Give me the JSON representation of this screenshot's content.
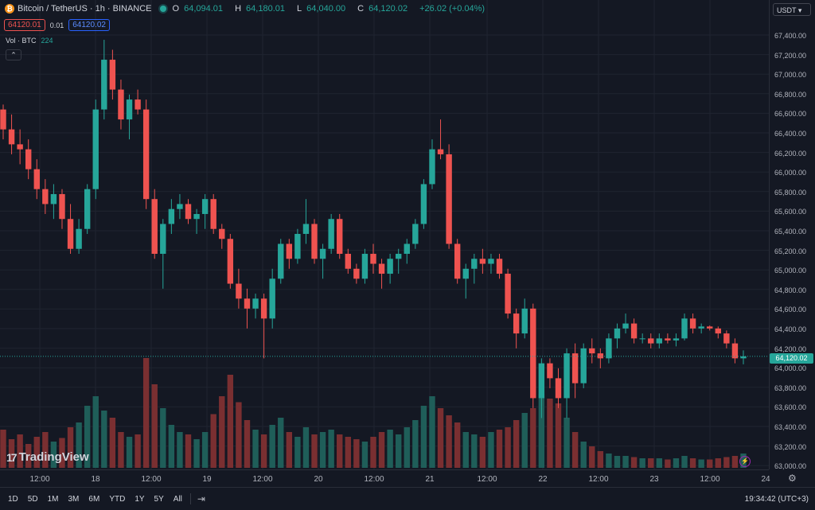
{
  "header": {
    "symbol": "Bitcoin / TetherUS · 1h · BINANCE",
    "logo_glyph": "₿",
    "ohlc": [
      {
        "k": "O",
        "v": "64,094.01"
      },
      {
        "k": "H",
        "v": "64,180.01"
      },
      {
        "k": "L",
        "v": "64,040.00"
      },
      {
        "k": "C",
        "v": "64,120.02"
      }
    ],
    "change": "+26.02 (+0.04%)"
  },
  "quote": {
    "bid": "64120.01",
    "spread": "0.01",
    "ask": "64120.02"
  },
  "volume": {
    "label": "Vol · BTC",
    "value": "224"
  },
  "collapse_glyph": "⌃",
  "watermark": {
    "mark": "17",
    "text": "TradingView"
  },
  "currency": "USDT ▾",
  "last_price": "64,120.02",
  "price_labels": [
    "67,400.00",
    "67,200.00",
    "67,000.00",
    "66,800.00",
    "66,600.00",
    "66,400.00",
    "66,200.00",
    "66,000.00",
    "65,800.00",
    "65,600.00",
    "65,400.00",
    "65,200.00",
    "65,000.00",
    "64,800.00",
    "64,600.00",
    "64,400.00",
    "64,200.00",
    "64,000.00",
    "63,800.00",
    "63,600.00",
    "63,400.00",
    "63,200.00",
    "63,000.00"
  ],
  "time_labels": [
    "12:00",
    "18",
    "12:00",
    "19",
    "12:00",
    "20",
    "12:00",
    "21",
    "12:00",
    "22",
    "12:00",
    "23",
    "12:00",
    "24"
  ],
  "timeframes": [
    "1D",
    "5D",
    "1M",
    "3M",
    "6M",
    "YTD",
    "1Y",
    "5Y",
    "All"
  ],
  "clock": "19:34:42 (UTC+3)",
  "colors": {
    "up": "#26a69a",
    "down": "#ef5350",
    "up_vol": "#1f5e59",
    "down_vol": "#7a2f31",
    "bg": "#141823"
  },
  "chart_data": {
    "type": "candlestick",
    "ylim": [
      63000,
      67500
    ],
    "ohlc_samples": [
      [
        66600,
        66650,
        66300,
        66400
      ],
      [
        66400,
        66550,
        66150,
        66250
      ],
      [
        66250,
        66400,
        66050,
        66200
      ],
      [
        66200,
        66300,
        65900,
        66000
      ],
      [
        66000,
        66100,
        65700,
        65800
      ],
      [
        65800,
        65900,
        65550,
        65650
      ],
      [
        65650,
        65850,
        65500,
        65750
      ],
      [
        65750,
        65800,
        65400,
        65500
      ],
      [
        65500,
        65650,
        65150,
        65200
      ],
      [
        65200,
        65500,
        65150,
        65400
      ],
      [
        65400,
        65850,
        65350,
        65800
      ],
      [
        65800,
        66700,
        65700,
        66600
      ],
      [
        66600,
        67300,
        66500,
        67100
      ],
      [
        67100,
        67200,
        66700,
        66800
      ],
      [
        66800,
        66900,
        66400,
        66500
      ],
      [
        66500,
        66750,
        66300,
        66700
      ],
      [
        66700,
        66800,
        66550,
        66600
      ],
      [
        66600,
        66700,
        65600,
        65700
      ],
      [
        65700,
        65800,
        65100,
        65150
      ],
      [
        65150,
        65500,
        64800,
        65450
      ],
      [
        65450,
        65700,
        65350,
        65600
      ],
      [
        65600,
        65750,
        65500,
        65650
      ],
      [
        65650,
        65700,
        65450,
        65500
      ],
      [
        65500,
        65600,
        65350,
        65550
      ],
      [
        65550,
        65750,
        65400,
        65700
      ],
      [
        65700,
        65750,
        65350,
        65400
      ],
      [
        65400,
        65450,
        65200,
        65300
      ],
      [
        65300,
        65350,
        64800,
        64850
      ],
      [
        64850,
        65000,
        64600,
        64700
      ],
      [
        64700,
        64800,
        64400,
        64600
      ],
      [
        64600,
        64750,
        64500,
        64700
      ],
      [
        64700,
        64750,
        64100,
        64500
      ],
      [
        64500,
        65000,
        64400,
        64900
      ],
      [
        64900,
        65300,
        64850,
        65250
      ],
      [
        65250,
        65300,
        65000,
        65100
      ],
      [
        65100,
        65400,
        65050,
        65350
      ],
      [
        65350,
        65700,
        65250,
        65450
      ],
      [
        65450,
        65500,
        65050,
        65100
      ],
      [
        65100,
        65250,
        64900,
        65200
      ],
      [
        65200,
        65550,
        65150,
        65500
      ],
      [
        65500,
        65550,
        65100,
        65150
      ],
      [
        65150,
        65200,
        64950,
        65000
      ],
      [
        65000,
        65050,
        64850,
        64900
      ],
      [
        64900,
        65200,
        64850,
        65150
      ],
      [
        65150,
        65250,
        64950,
        65050
      ],
      [
        65050,
        65100,
        64800,
        64950
      ],
      [
        64950,
        65150,
        64850,
        65100
      ],
      [
        65100,
        65200,
        64950,
        65150
      ],
      [
        65150,
        65300,
        65050,
        65250
      ],
      [
        65250,
        65500,
        65200,
        65450
      ],
      [
        65450,
        65900,
        65400,
        65850
      ],
      [
        65850,
        66300,
        65800,
        66200
      ],
      [
        66200,
        66500,
        66100,
        66150
      ],
      [
        66150,
        66250,
        65200,
        65250
      ],
      [
        65250,
        65300,
        64850,
        64900
      ],
      [
        64900,
        65050,
        64700,
        65000
      ],
      [
        65000,
        65150,
        64850,
        65100
      ],
      [
        65100,
        65200,
        64950,
        65050
      ],
      [
        65050,
        65150,
        64950,
        65100
      ],
      [
        65100,
        65150,
        64900,
        64950
      ],
      [
        64950,
        65000,
        64500,
        64550
      ],
      [
        64550,
        64600,
        64200,
        64350
      ],
      [
        64350,
        64700,
        64300,
        64600
      ],
      [
        64600,
        64650,
        63600,
        63700
      ],
      [
        63700,
        64100,
        63500,
        64050
      ],
      [
        64050,
        64100,
        63800,
        63900
      ],
      [
        63900,
        64000,
        63600,
        63700
      ],
      [
        63700,
        64200,
        63500,
        64150
      ],
      [
        64150,
        64250,
        63700,
        63850
      ],
      [
        63850,
        64250,
        63800,
        64200
      ],
      [
        64200,
        64300,
        64050,
        64150
      ],
      [
        64150,
        64200,
        64000,
        64100
      ],
      [
        64100,
        64350,
        64050,
        64300
      ],
      [
        64300,
        64450,
        64200,
        64400
      ],
      [
        64400,
        64550,
        64350,
        64450
      ],
      [
        64450,
        64500,
        64250,
        64300
      ],
      [
        64300,
        64350,
        64250,
        64300
      ],
      [
        64300,
        64350,
        64200,
        64250
      ],
      [
        64250,
        64350,
        64200,
        64300
      ],
      [
        64300,
        64350,
        64250,
        64280
      ],
      [
        64280,
        64350,
        64220,
        64300
      ],
      [
        64300,
        64550,
        64280,
        64500
      ],
      [
        64500,
        64550,
        64350,
        64400
      ],
      [
        64400,
        64450,
        64350,
        64420
      ],
      [
        64420,
        64430,
        64380,
        64400
      ],
      [
        64400,
        64420,
        64300,
        64350
      ],
      [
        64350,
        64380,
        64200,
        64250
      ],
      [
        64250,
        64300,
        64050,
        64100
      ],
      [
        64100,
        64180,
        64040,
        64120
      ]
    ],
    "volume_samples": [
      0.32,
      0.24,
      0.28,
      0.2,
      0.26,
      0.3,
      0.22,
      0.25,
      0.34,
      0.38,
      0.52,
      0.6,
      0.48,
      0.42,
      0.3,
      0.26,
      0.28,
      0.92,
      0.7,
      0.5,
      0.36,
      0.3,
      0.28,
      0.24,
      0.3,
      0.45,
      0.6,
      0.78,
      0.55,
      0.4,
      0.32,
      0.28,
      0.36,
      0.42,
      0.3,
      0.26,
      0.34,
      0.28,
      0.3,
      0.32,
      0.28,
      0.26,
      0.24,
      0.22,
      0.26,
      0.3,
      0.32,
      0.28,
      0.34,
      0.4,
      0.52,
      0.6,
      0.5,
      0.44,
      0.38,
      0.3,
      0.28,
      0.26,
      0.3,
      0.32,
      0.34,
      0.4,
      0.46,
      0.5,
      0.62,
      0.58,
      0.54,
      0.42,
      0.3,
      0.22,
      0.18,
      0.14,
      0.12,
      0.1,
      0.1,
      0.09,
      0.08,
      0.08,
      0.08,
      0.07,
      0.08,
      0.1,
      0.08,
      0.07,
      0.07,
      0.08,
      0.09,
      0.1,
      0.12
    ]
  }
}
